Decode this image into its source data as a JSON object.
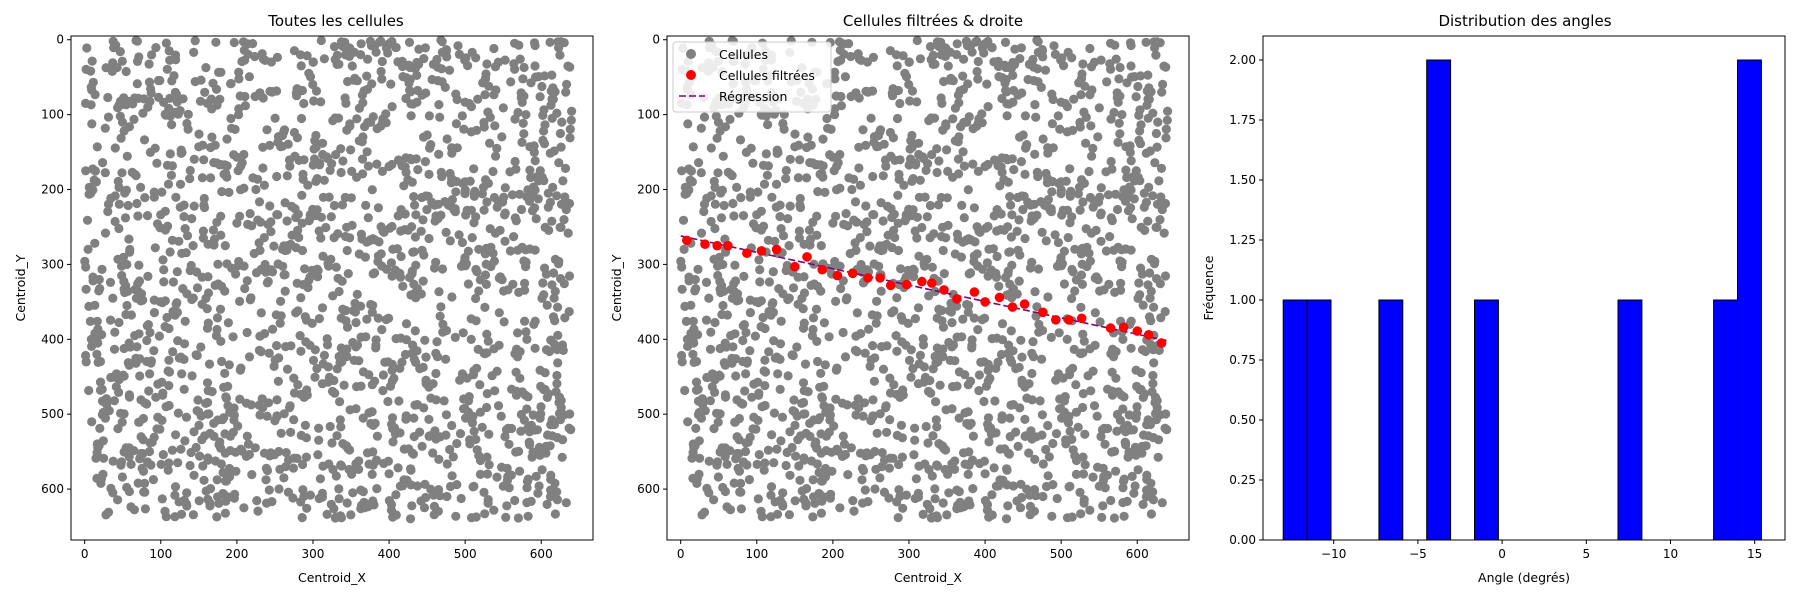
{
  "chart_data": [
    {
      "type": "scatter",
      "title": "Toutes les cellules",
      "xlabel": "Centroid_X",
      "ylabel": "Centroid_Y",
      "xlim": [
        -18,
        668
      ],
      "ylim": [
        668,
        -5
      ],
      "y_inverted": true,
      "xticks": [
        0,
        100,
        200,
        300,
        400,
        500,
        600
      ],
      "yticks": [
        0,
        100,
        200,
        300,
        400,
        500,
        600
      ],
      "series": [
        {
          "color": "#808080",
          "point_count": 1800,
          "x_range": [
            0,
            640
          ],
          "y_range": [
            0,
            640
          ]
        }
      ],
      "grid": false
    },
    {
      "type": "scatter",
      "title": "Cellules filtrées & droite",
      "xlabel": "Centroid_X",
      "ylabel": "Centroid_Y",
      "xlim": [
        -18,
        668
      ],
      "ylim": [
        668,
        -5
      ],
      "y_inverted": true,
      "xticks": [
        0,
        100,
        200,
        300,
        400,
        500,
        600
      ],
      "yticks": [
        0,
        100,
        200,
        300,
        400,
        500,
        600
      ],
      "legend": "top-left",
      "series": [
        {
          "name": "Cellules",
          "color": "#808080",
          "point_count": 1800,
          "x_range": [
            0,
            640
          ],
          "y_range": [
            0,
            640
          ]
        },
        {
          "name": "Cellules filtrées",
          "color": "#ff0000",
          "x": [
            8,
            32,
            48,
            62,
            87,
            106,
            126,
            150,
            166,
            186,
            206,
            226,
            246,
            262,
            276,
            297,
            317,
            330,
            346,
            363,
            386,
            400,
            419,
            436,
            452,
            476,
            493,
            510,
            527,
            565,
            582,
            600,
            615,
            632
          ],
          "y": [
            268,
            273,
            275,
            275,
            285,
            282,
            280,
            303,
            290,
            307,
            315,
            312,
            318,
            318,
            328,
            327,
            323,
            325,
            334,
            346,
            337,
            350,
            344,
            357,
            353,
            364,
            374,
            374,
            372,
            385,
            384,
            389,
            394,
            405
          ]
        },
        {
          "name": "Régression",
          "color": "#800080",
          "style": "dashed",
          "x": [
            0,
            640
          ],
          "y": [
            262,
            402
          ]
        }
      ],
      "grid": false
    },
    {
      "type": "bar",
      "title": "Distribution des angles",
      "xlabel": "Angle (degrés)",
      "ylabel": "Fréquence",
      "xlim": [
        -14.2,
        16.8
      ],
      "ylim": [
        0,
        2.1
      ],
      "xticks": [
        -10,
        -5,
        0,
        5,
        10,
        15
      ],
      "yticks": [
        0.0,
        0.25,
        0.5,
        0.75,
        1.0,
        1.25,
        1.5,
        1.75,
        2.0
      ],
      "bin_edges": [
        -13.0,
        -11.58,
        -10.16,
        -8.74,
        -7.32,
        -5.9,
        -4.48,
        -3.06,
        -1.64,
        -0.22,
        1.2,
        2.62,
        4.04,
        5.46,
        6.88,
        8.3,
        9.72,
        11.14,
        12.56,
        13.98,
        15.4
      ],
      "values": [
        1,
        1,
        0,
        0,
        1,
        0,
        2,
        0,
        1,
        0,
        0,
        0,
        0,
        0,
        1,
        0,
        0,
        0,
        1,
        2
      ],
      "color": "#0000ff",
      "grid": false
    }
  ],
  "tick_text": {
    "p0x": [
      "0",
      "100",
      "200",
      "300",
      "400",
      "500",
      "600"
    ],
    "p0y": [
      "0",
      "100",
      "200",
      "300",
      "400",
      "500",
      "600"
    ],
    "p1x": [
      "0",
      "100",
      "200",
      "300",
      "400",
      "500",
      "600"
    ],
    "p1y": [
      "0",
      "100",
      "200",
      "300",
      "400",
      "500",
      "600"
    ],
    "p2x": [
      "−10",
      "−5",
      "0",
      "5",
      "10",
      "15"
    ],
    "p2y": [
      "0.00",
      "0.25",
      "0.50",
      "0.75",
      "1.00",
      "1.25",
      "1.50",
      "1.75",
      "2.00"
    ]
  }
}
